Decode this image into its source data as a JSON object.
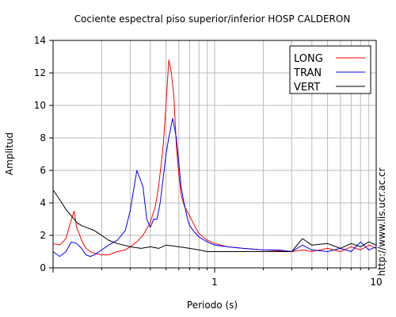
{
  "chart_data": {
    "type": "line",
    "title": "Cociente espectral piso superior/inferior  HOSP CALDERON",
    "xlabel": "Periodo (s)",
    "ylabel": "Amplitud",
    "x_scale": "log",
    "xlim": [
      0.1,
      10
    ],
    "ylim": [
      0,
      14
    ],
    "x_tick_labels": [
      {
        "value": 1,
        "label": "1"
      },
      {
        "value": 10,
        "label": "10"
      }
    ],
    "y_ticks": [
      0,
      2,
      4,
      6,
      8,
      10,
      12,
      14
    ],
    "grid": true,
    "legend_position": "top-right",
    "side_note": "http://www.lis.ucr.ac.cr",
    "series": [
      {
        "name": "LONG",
        "color": "#ff0000",
        "x": [
          0.1,
          0.11,
          0.12,
          0.13,
          0.135,
          0.14,
          0.15,
          0.16,
          0.17,
          0.18,
          0.2,
          0.22,
          0.25,
          0.28,
          0.3,
          0.33,
          0.36,
          0.4,
          0.43,
          0.45,
          0.48,
          0.5,
          0.52,
          0.54,
          0.56,
          0.58,
          0.6,
          0.62,
          0.65,
          0.7,
          0.75,
          0.8,
          0.9,
          1.0,
          1.2,
          1.5,
          2.0,
          2.5,
          3.0,
          3.5,
          4.0,
          5.0,
          6.0,
          7.0,
          8.0,
          9.0,
          10.0
        ],
        "y": [
          1.5,
          1.4,
          1.8,
          3.0,
          3.5,
          2.5,
          1.7,
          1.2,
          1.0,
          0.9,
          0.8,
          0.8,
          1.0,
          1.1,
          1.3,
          1.6,
          2.0,
          2.8,
          3.8,
          5.0,
          7.5,
          10.0,
          12.8,
          12.0,
          10.5,
          7.5,
          5.8,
          4.5,
          3.8,
          3.2,
          2.6,
          2.1,
          1.7,
          1.5,
          1.3,
          1.2,
          1.1,
          1.05,
          1.0,
          1.1,
          1.0,
          1.2,
          1.0,
          1.3,
          1.1,
          1.4,
          1.2
        ]
      },
      {
        "name": "TRAN",
        "color": "#0000ff",
        "x": [
          0.1,
          0.11,
          0.12,
          0.13,
          0.14,
          0.15,
          0.16,
          0.17,
          0.18,
          0.2,
          0.22,
          0.25,
          0.28,
          0.3,
          0.33,
          0.36,
          0.38,
          0.4,
          0.42,
          0.44,
          0.46,
          0.48,
          0.5,
          0.52,
          0.55,
          0.58,
          0.6,
          0.62,
          0.64,
          0.66,
          0.68,
          0.7,
          0.75,
          0.8,
          0.9,
          1.0,
          1.2,
          1.5,
          2.0,
          2.5,
          3.0,
          3.5,
          4.0,
          5.0,
          6.0,
          7.0,
          8.0,
          9.0,
          10.0
        ],
        "y": [
          1.0,
          0.7,
          1.0,
          1.6,
          1.5,
          1.2,
          0.8,
          0.7,
          0.8,
          1.1,
          1.4,
          1.7,
          2.3,
          3.5,
          6.0,
          5.0,
          3.0,
          2.5,
          3.0,
          3.0,
          4.0,
          5.5,
          7.0,
          8.0,
          9.2,
          8.0,
          6.5,
          5.0,
          4.2,
          3.6,
          3.0,
          2.6,
          2.2,
          1.9,
          1.6,
          1.4,
          1.3,
          1.2,
          1.1,
          1.1,
          1.0,
          1.4,
          1.1,
          1.0,
          1.2,
          1.0,
          1.6,
          1.1,
          1.3
        ]
      },
      {
        "name": "VERT",
        "color": "#000000",
        "x": [
          0.1,
          0.11,
          0.12,
          0.13,
          0.14,
          0.15,
          0.16,
          0.18,
          0.2,
          0.22,
          0.25,
          0.3,
          0.35,
          0.4,
          0.45,
          0.5,
          0.6,
          0.7,
          0.8,
          0.9,
          1.0,
          1.2,
          1.5,
          2.0,
          2.5,
          3.0,
          3.5,
          4.0,
          5.0,
          6.0,
          7.0,
          8.0,
          9.0,
          10.0
        ],
        "y": [
          4.8,
          4.2,
          3.6,
          3.2,
          2.8,
          2.6,
          2.5,
          2.3,
          2.0,
          1.7,
          1.5,
          1.3,
          1.2,
          1.3,
          1.2,
          1.4,
          1.3,
          1.2,
          1.1,
          1.0,
          1.0,
          1.0,
          1.0,
          1.0,
          1.0,
          1.0,
          1.8,
          1.4,
          1.5,
          1.2,
          1.5,
          1.3,
          1.6,
          1.4
        ]
      }
    ]
  }
}
